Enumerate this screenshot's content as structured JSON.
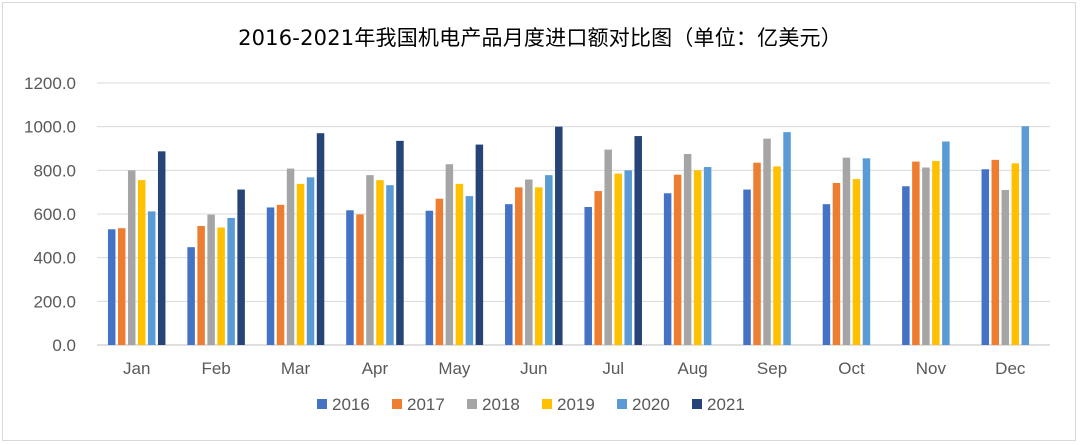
{
  "chart_data": {
    "type": "bar",
    "title": "2016-2021年我国机电产品月度进口额对比图（单位：亿美元）",
    "categories": [
      "Jan",
      "Feb",
      "Mar",
      "Apr",
      "May",
      "Jun",
      "Jul",
      "Aug",
      "Sep",
      "Oct",
      "Nov",
      "Dec"
    ],
    "ylim": [
      0,
      1200
    ],
    "yticks": [
      "0.0",
      "200.0",
      "400.0",
      "600.0",
      "800.0",
      "1000.0",
      "1200.0"
    ],
    "grid": true,
    "legend_position": "bottom",
    "series": [
      {
        "name": "2016",
        "color": "#4472c4",
        "values": [
          530,
          448,
          630,
          617,
          615,
          645,
          632,
          695,
          712,
          645,
          727,
          805
        ]
      },
      {
        "name": "2017",
        "color": "#ed7d31",
        "values": [
          535,
          545,
          642,
          598,
          670,
          722,
          705,
          780,
          835,
          742,
          840,
          848
        ]
      },
      {
        "name": "2018",
        "color": "#a5a5a5",
        "values": [
          800,
          597,
          808,
          778,
          828,
          758,
          895,
          875,
          945,
          858,
          813,
          710
        ]
      },
      {
        "name": "2019",
        "color": "#ffc000",
        "values": [
          755,
          538,
          738,
          755,
          738,
          722,
          785,
          800,
          818,
          760,
          843,
          832
        ]
      },
      {
        "name": "2020",
        "color": "#5b9bd5",
        "values": [
          612,
          582,
          768,
          732,
          682,
          778,
          800,
          815,
          975,
          855,
          932,
          1002
        ]
      },
      {
        "name": "2021",
        "color": "#264478",
        "values": [
          887,
          712,
          970,
          935,
          918,
          1000,
          957,
          null,
          null,
          null,
          null,
          null
        ]
      }
    ]
  }
}
